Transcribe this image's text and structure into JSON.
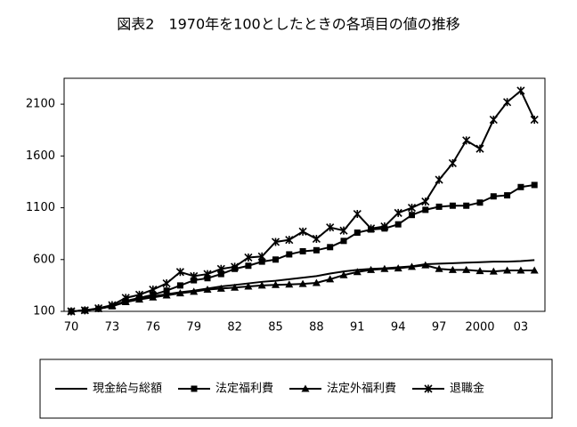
{
  "chart_data": {
    "type": "line",
    "title": "図表2　1970年を100としたときの各項目の値の推移",
    "categories": [
      "70",
      null,
      null,
      "73",
      null,
      null,
      "76",
      null,
      null,
      "79",
      null,
      null,
      "82",
      null,
      null,
      "85",
      null,
      null,
      "88",
      null,
      null,
      "91",
      null,
      null,
      "94",
      null,
      null,
      "97",
      null,
      null,
      "2000",
      null,
      null,
      "03",
      null
    ],
    "series": [
      {
        "name": "現金給与総額",
        "color": "#000000",
        "marker": "none",
        "values": [
          100,
          110,
          125,
          150,
          190,
          220,
          245,
          265,
          285,
          300,
          320,
          340,
          355,
          370,
          385,
          395,
          410,
          425,
          440,
          465,
          485,
          500,
          510,
          515,
          525,
          535,
          555,
          560,
          565,
          570,
          575,
          580,
          580,
          585,
          595
        ]
      },
      {
        "name": "法定福利費",
        "color": "#000000",
        "marker": "square",
        "values": [
          100,
          110,
          125,
          150,
          200,
          230,
          260,
          300,
          350,
          400,
          420,
          460,
          510,
          540,
          580,
          600,
          650,
          680,
          690,
          720,
          780,
          860,
          890,
          900,
          940,
          1030,
          1080,
          1110,
          1120,
          1120,
          1150,
          1210,
          1220,
          1300,
          1320
        ]
      },
      {
        "name": "法定外福利費",
        "color": "#000000",
        "marker": "triangle",
        "values": [
          100,
          110,
          125,
          150,
          190,
          215,
          235,
          255,
          275,
          290,
          310,
          320,
          330,
          340,
          350,
          355,
          360,
          365,
          375,
          410,
          450,
          480,
          500,
          510,
          515,
          530,
          545,
          510,
          500,
          500,
          490,
          485,
          495,
          495,
          495
        ]
      },
      {
        "name": "退職金",
        "color": "#000000",
        "marker": "x",
        "values": [
          100,
          110,
          130,
          160,
          230,
          260,
          310,
          370,
          480,
          440,
          460,
          510,
          530,
          620,
          630,
          770,
          790,
          870,
          800,
          910,
          880,
          1040,
          900,
          920,
          1050,
          1100,
          1160,
          1370,
          1530,
          1750,
          1670,
          1950,
          2120,
          2230,
          1950
        ]
      }
    ],
    "ylim": [
      100,
      2350
    ],
    "yticks": [
      100,
      600,
      1100,
      1600,
      2100
    ],
    "grid": false
  }
}
